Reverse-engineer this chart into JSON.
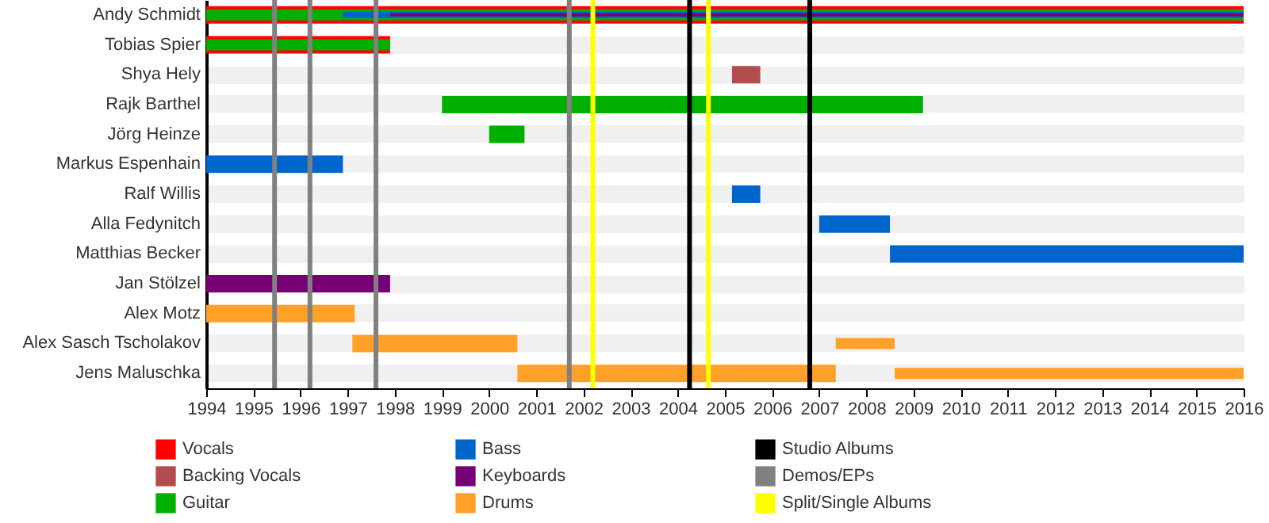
{
  "chart_data": {
    "type": "bar",
    "orientation": "horizontal",
    "grid": "y",
    "legend": "bottom",
    "categories": [
      "Andy Schmidt",
      "Tobias Spier",
      "Shya Hely",
      "Rajk Barthel",
      "Jörg Heinze",
      "Markus Espenhain",
      "Ralf Willis",
      "Alla Fedynitch",
      "Matthias Becker",
      "Jan Stölzel",
      "Alex Motz",
      "Alex Sasch Tscholakov",
      "Jens Maluschka"
    ],
    "xlim": [
      1994,
      2016
    ],
    "xticks": [
      1994,
      1995,
      1996,
      1997,
      1998,
      1999,
      2000,
      2001,
      2002,
      2003,
      2004,
      2005,
      2006,
      2007,
      2008,
      2009,
      2010,
      2011,
      2012,
      2013,
      2014,
      2015,
      2016
    ],
    "series": [
      {
        "name": "Vocals",
        "color": "#ff0000",
        "base": [
          1994,
          1994,
          null,
          null,
          null,
          null,
          null,
          null,
          null,
          null,
          null,
          null,
          null
        ],
        "values": [
          22,
          3.9,
          null,
          null,
          null,
          null,
          null,
          null,
          null,
          null,
          null,
          null,
          null
        ]
      },
      {
        "name": "Backing Vocals",
        "color": "#b34d4d",
        "base": [
          null,
          null,
          2005.15,
          null,
          null,
          null,
          null,
          null,
          null,
          null,
          null,
          null,
          null
        ],
        "values": [
          null,
          null,
          0.6,
          null,
          null,
          null,
          null,
          null,
          null,
          null,
          null,
          null,
          null
        ]
      },
      {
        "name": "Guitar",
        "color": "#00b000",
        "base": [
          1994,
          1994,
          null,
          1999,
          2000,
          null,
          null,
          null,
          null,
          null,
          null,
          null,
          null
        ],
        "values": [
          22,
          3.9,
          null,
          10.2,
          0.75,
          null,
          null,
          null,
          null,
          null,
          null,
          null,
          null
        ]
      },
      {
        "name": "Bass",
        "color": "#0066cc",
        "base": [
          1996.9,
          null,
          null,
          null,
          null,
          1994,
          2005.15,
          2007,
          2008.5,
          null,
          null,
          null,
          null
        ],
        "values": [
          19.1,
          null,
          null,
          null,
          null,
          2.9,
          0.6,
          1.5,
          7.5,
          null,
          null,
          null,
          null
        ]
      },
      {
        "name": "Keyboards",
        "color": "#770077",
        "base": [
          1997.9,
          null,
          null,
          null,
          null,
          null,
          null,
          null,
          null,
          1994,
          null,
          null,
          null
        ],
        "values": [
          18.1,
          null,
          null,
          null,
          null,
          null,
          null,
          null,
          null,
          3.9,
          null,
          null,
          null
        ]
      },
      {
        "name": "Drums",
        "color": "#ffa028",
        "base": [
          null,
          null,
          null,
          null,
          null,
          null,
          null,
          null,
          null,
          null,
          1994,
          1997.1,
          2000.6
        ],
        "values": [
          null,
          null,
          null,
          null,
          null,
          null,
          null,
          null,
          null,
          null,
          3.15,
          3.5,
          6.75
        ]
      },
      {
        "color": "#ffa028",
        "base": [
          null,
          null,
          null,
          null,
          null,
          null,
          null,
          null,
          null,
          null,
          null,
          2007.35,
          2008.6
        ],
        "values": [
          null,
          null,
          null,
          null,
          null,
          null,
          null,
          null,
          null,
          null,
          null,
          1.25,
          7.4
        ]
      }
    ],
    "ref_lines": [
      {
        "axis": "x",
        "value": 2004.25,
        "label": "Studio Albums",
        "color": "#000000"
      },
      {
        "axis": "x",
        "value": 2006.8,
        "color": "#000000"
      },
      {
        "axis": "x",
        "value": 1995.45,
        "label": "Demos/EPs",
        "color": "#808080"
      },
      {
        "axis": "x",
        "value": 1996.2,
        "color": "#808080"
      },
      {
        "axis": "x",
        "value": 1997.6,
        "color": "#808080"
      },
      {
        "axis": "x",
        "value": 2001.7,
        "color": "#808080"
      },
      {
        "axis": "x",
        "value": 2002.2,
        "label": "Split/Single Albums",
        "color": "#ffff00"
      },
      {
        "axis": "x",
        "value": 2004.65,
        "color": "#ffff00"
      }
    ]
  }
}
